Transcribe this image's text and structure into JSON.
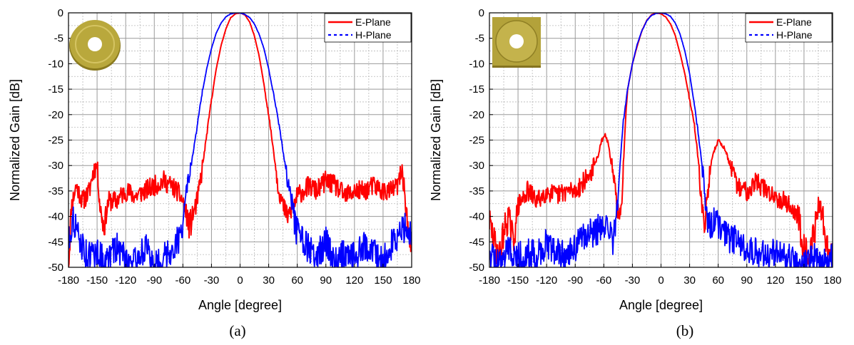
{
  "figure": {
    "captions": [
      "(a)",
      "(b)"
    ]
  },
  "chart_data": [
    {
      "type": "line",
      "panel": "(a)",
      "xlabel": "Angle [degree]",
      "ylabel": "Normalized Gain [dB]",
      "xlim": [
        -180,
        180
      ],
      "ylim": [
        -50,
        0
      ],
      "xticks": [
        -180,
        -150,
        -120,
        -90,
        -60,
        -30,
        0,
        30,
        60,
        90,
        120,
        150,
        180
      ],
      "yticks": [
        0,
        -5,
        -10,
        -15,
        -20,
        -25,
        -30,
        -35,
        -40,
        -45,
        -50
      ],
      "grid": true,
      "legend_position": "top-right",
      "inset": "circular-disc-antenna-icon",
      "series": [
        {
          "name": "E-Plane",
          "color": "#ff0000",
          "style": "solid",
          "x": [
            -180,
            -177,
            -172,
            -165,
            -158,
            -154,
            -150,
            -147,
            -143,
            -138,
            -130,
            -120,
            -110,
            -100,
            -90,
            -80,
            -72,
            -66,
            -60,
            -56,
            -53,
            -50,
            -45,
            -40,
            -35,
            -30,
            -25,
            -20,
            -15,
            -10,
            -5,
            0,
            5,
            10,
            15,
            20,
            25,
            30,
            35,
            40,
            45,
            50,
            53,
            56,
            60,
            66,
            72,
            80,
            90,
            100,
            110,
            120,
            130,
            140,
            150,
            158,
            165,
            170,
            173,
            175,
            177,
            180
          ],
          "y": [
            -50,
            -38,
            -34,
            -37,
            -35,
            -31,
            -30,
            -38,
            -42,
            -37,
            -37,
            -35,
            -36,
            -35,
            -34,
            -33,
            -34,
            -35,
            -37,
            -40,
            -42,
            -40,
            -37,
            -31,
            -24,
            -17,
            -11,
            -6.5,
            -3.2,
            -1.0,
            -0.2,
            0,
            -0.4,
            -1.8,
            -4.5,
            -8.5,
            -14,
            -20,
            -27,
            -34,
            -38,
            -40,
            -39,
            -38,
            -36,
            -35,
            -34,
            -35,
            -33,
            -34,
            -36,
            -35,
            -35,
            -34,
            -35,
            -35,
            -34,
            -31,
            -36,
            -40,
            -44,
            -48
          ]
        },
        {
          "name": "H-Plane",
          "color": "#0000ff",
          "style": "dash-dot",
          "x": [
            -180,
            -175,
            -170,
            -160,
            -150,
            -140,
            -130,
            -120,
            -110,
            -100,
            -90,
            -80,
            -70,
            -62,
            -58,
            -55,
            -52,
            -48,
            -44,
            -40,
            -35,
            -30,
            -25,
            -20,
            -15,
            -10,
            -5,
            0,
            5,
            10,
            15,
            20,
            25,
            30,
            35,
            40,
            45,
            50,
            54,
            58,
            62,
            70,
            80,
            90,
            100,
            110,
            120,
            130,
            140,
            150,
            160,
            170,
            175,
            180
          ],
          "y": [
            -45,
            -40,
            -44,
            -48,
            -47,
            -49,
            -46,
            -48,
            -49,
            -46,
            -50,
            -48,
            -46,
            -44,
            -37,
            -34,
            -31,
            -26,
            -21,
            -16,
            -11,
            -7,
            -4,
            -2,
            -0.8,
            -0.2,
            0,
            0,
            -0.3,
            -0.9,
            -2.2,
            -4.2,
            -7,
            -11,
            -16,
            -21,
            -27,
            -33,
            -37,
            -42,
            -44,
            -46,
            -48,
            -45,
            -49,
            -47,
            -48,
            -46,
            -47,
            -49,
            -45,
            -43,
            -41,
            -45
          ]
        }
      ]
    },
    {
      "type": "line",
      "panel": "(b)",
      "xlabel": "Angle [degree]",
      "ylabel": "Normalized Gain [dB]",
      "xlim": [
        -180,
        180
      ],
      "ylim": [
        -50,
        0
      ],
      "xticks": [
        -180,
        -150,
        -120,
        -90,
        -60,
        -30,
        0,
        30,
        60,
        90,
        120,
        150,
        180
      ],
      "yticks": [
        0,
        -5,
        -10,
        -15,
        -20,
        -25,
        -30,
        -35,
        -40,
        -45,
        -50
      ],
      "grid": true,
      "legend_position": "top-right",
      "inset": "square-disc-antenna-icon",
      "series": [
        {
          "name": "E-Plane",
          "color": "#ff0000",
          "style": "solid",
          "x": [
            -180,
            -175,
            -170,
            -165,
            -160,
            -155,
            -150,
            -140,
            -130,
            -120,
            -110,
            -100,
            -90,
            -80,
            -72,
            -66,
            -62,
            -58,
            -55,
            -52,
            -48,
            -45,
            -43,
            -41,
            -39,
            -37,
            -35,
            -30,
            -25,
            -20,
            -15,
            -10,
            -5,
            0,
            5,
            10,
            15,
            20,
            25,
            30,
            35,
            38,
            40,
            42,
            44,
            46,
            48,
            52,
            56,
            60,
            64,
            68,
            72,
            80,
            90,
            100,
            110,
            120,
            130,
            140,
            145,
            150,
            155,
            160,
            165,
            170,
            175,
            180
          ],
          "y": [
            -41,
            -45,
            -48,
            -43,
            -40,
            -45,
            -38,
            -35,
            -37,
            -35,
            -36,
            -35,
            -35,
            -33,
            -31,
            -28,
            -25,
            -24,
            -26,
            -30,
            -35,
            -39,
            -41,
            -38,
            -28,
            -20,
            -15,
            -10,
            -6.5,
            -3.5,
            -1.5,
            -0.4,
            0,
            -0.2,
            -0.8,
            -2.2,
            -4.5,
            -8,
            -12,
            -17,
            -22,
            -27,
            -31,
            -36,
            -40,
            -42,
            -37,
            -30,
            -27,
            -25,
            -26,
            -27,
            -30,
            -34,
            -35,
            -33,
            -35,
            -36,
            -37,
            -39,
            -41,
            -46,
            -48,
            -44,
            -38,
            -40,
            -47,
            -48
          ]
        },
        {
          "name": "H-Plane",
          "color": "#0000ff",
          "style": "dash-dot",
          "x": [
            -180,
            -170,
            -160,
            -150,
            -140,
            -130,
            -120,
            -110,
            -100,
            -90,
            -80,
            -70,
            -60,
            -55,
            -50,
            -47,
            -45,
            -43,
            -40,
            -35,
            -30,
            -25,
            -20,
            -15,
            -10,
            -5,
            0,
            5,
            10,
            15,
            20,
            25,
            30,
            35,
            40,
            43,
            45,
            47,
            50,
            55,
            60,
            70,
            80,
            90,
            100,
            110,
            120,
            130,
            140,
            150,
            160,
            170,
            180
          ],
          "y": [
            -47,
            -49,
            -46,
            -48,
            -47,
            -48,
            -45,
            -47,
            -48,
            -46,
            -44,
            -43,
            -42,
            -43,
            -45,
            -40,
            -36,
            -30,
            -22,
            -15,
            -10,
            -6.2,
            -3.5,
            -1.6,
            -0.5,
            -0.1,
            0,
            -0.2,
            -0.7,
            -2.0,
            -4.2,
            -7.5,
            -12,
            -18,
            -25,
            -30,
            -34,
            -38,
            -42,
            -41,
            -42,
            -44,
            -45,
            -46,
            -47,
            -48,
            -47,
            -48,
            -49,
            -49,
            -48,
            -49,
            -48
          ]
        }
      ]
    }
  ]
}
